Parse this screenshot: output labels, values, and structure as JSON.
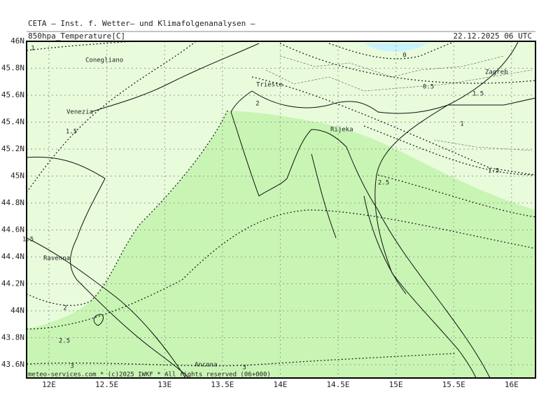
{
  "header": {
    "title": "CETA — Inst. f. Wetter— und Klimafolgenanalysen —",
    "field": "850hpa_Temperature[C]",
    "time": "22.12.2025 06 UTC"
  },
  "lat_labels": [
    "46N",
    "45.8N",
    "45.6N",
    "45.4N",
    "45.2N",
    "45N",
    "44.8N",
    "44.6N",
    "44.4N",
    "44.2N",
    "44N",
    "43.8N",
    "43.6N"
  ],
  "lon_labels": [
    "12E",
    "12.5E",
    "13E",
    "13.5E",
    "14E",
    "14.5E",
    "15E",
    "15.5E",
    "16E"
  ],
  "cities": [
    "Conegliano",
    "Venezia",
    "Trieste",
    "Rijeka",
    "Zagreb",
    "Ravenna",
    "Ancona"
  ],
  "contour_labels": [
    "1",
    "0",
    "0.5",
    "2",
    "1",
    "1.5",
    "1.5",
    "2.5",
    "1.5",
    "1.5",
    "2",
    "2.5",
    "3",
    "3"
  ],
  "footer": "meteo-services.com * (c)2025 IWKF * All rights reserved (06+000)"
}
